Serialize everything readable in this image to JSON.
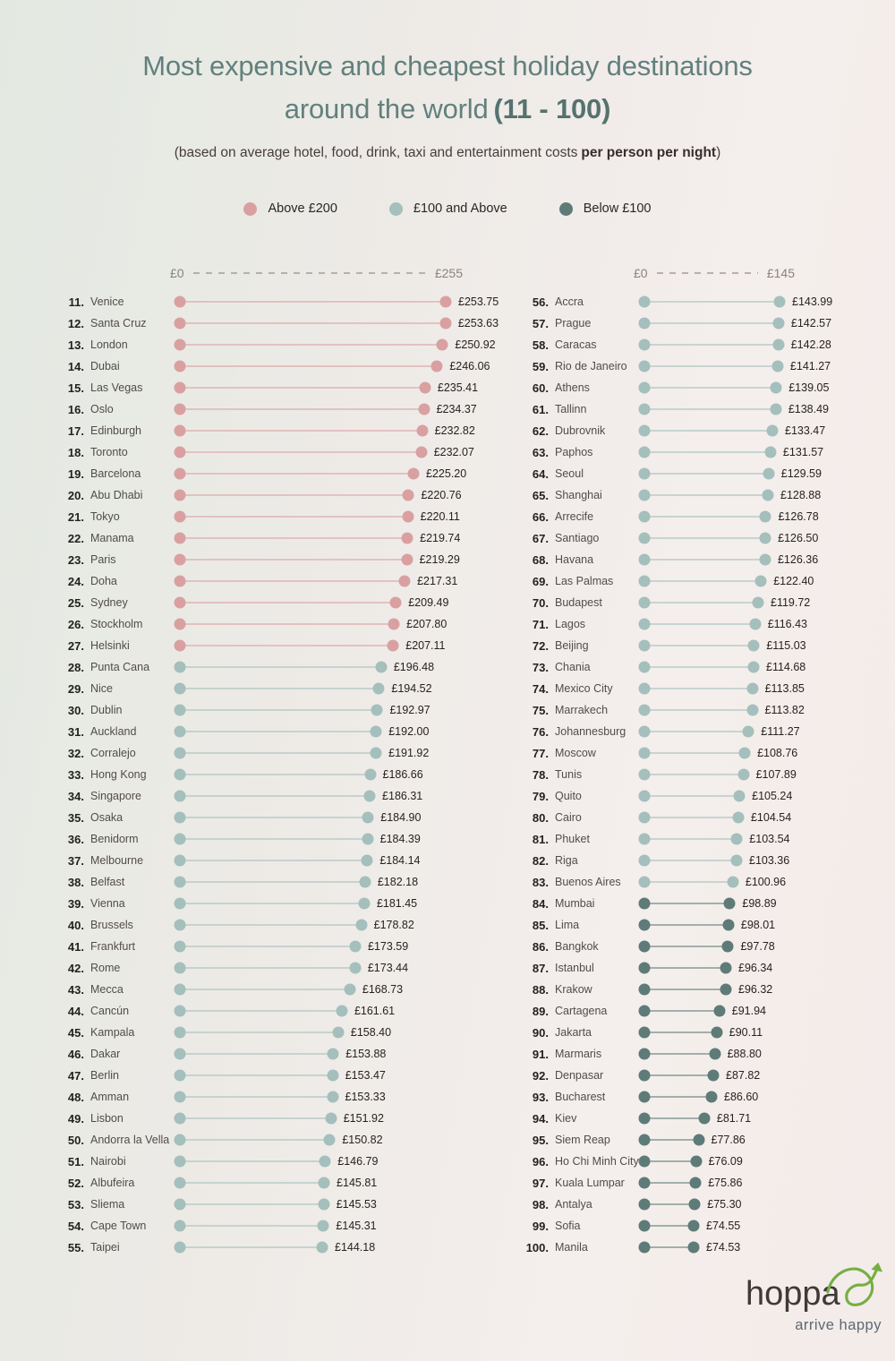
{
  "header": {
    "title_line1": "Most expensive and cheapest holiday destinations",
    "title_line2": "around the world",
    "title_range": "(11 - 100)",
    "subtitle_regular": "(based on average hotel, food, drink, taxi and entertainment costs",
    "subtitle_bold": "per person per night",
    "subtitle_close": ")"
  },
  "legend": {
    "items": [
      {
        "label": "Above £200",
        "color": "#d9a0a2"
      },
      {
        "label": "£100 and Above",
        "color": "#a4bfbc"
      },
      {
        "label": "Below £100",
        "color": "#5e7b78"
      }
    ]
  },
  "footer": {
    "brand": "hoppa",
    "tagline": "arrive happy",
    "arrow_color": "#76ae44"
  },
  "chart_data": {
    "type": "bar",
    "variant": "horizontal-dumbbell",
    "title": "Most expensive and cheapest holiday destinations around the world (11 - 100)",
    "unit": "£ per person per night",
    "legend_position": "top-center",
    "tier_colors": {
      "above200": "#d9a0a2",
      "above100": "#a4bfbc",
      "below100": "#5e7b78"
    },
    "panels": [
      {
        "axis_min_label": "£0",
        "axis_max_label": "£255",
        "xlim": [
          0,
          255
        ],
        "items": [
          {
            "rank": 11,
            "name": "Venice",
            "value": 253.75,
            "label": "£253.75",
            "tier": "above200"
          },
          {
            "rank": 12,
            "name": "Santa Cruz",
            "value": 253.63,
            "label": "£253.63",
            "tier": "above200"
          },
          {
            "rank": 13,
            "name": "London",
            "value": 250.92,
            "label": "£250.92",
            "tier": "above200"
          },
          {
            "rank": 14,
            "name": "Dubai",
            "value": 246.06,
            "label": "£246.06",
            "tier": "above200"
          },
          {
            "rank": 15,
            "name": "Las Vegas",
            "value": 235.41,
            "label": "£235.41",
            "tier": "above200"
          },
          {
            "rank": 16,
            "name": "Oslo",
            "value": 234.37,
            "label": "£234.37",
            "tier": "above200"
          },
          {
            "rank": 17,
            "name": "Edinburgh",
            "value": 232.82,
            "label": "£232.82",
            "tier": "above200"
          },
          {
            "rank": 18,
            "name": "Toronto",
            "value": 232.07,
            "label": "£232.07",
            "tier": "above200"
          },
          {
            "rank": 19,
            "name": "Barcelona",
            "value": 225.2,
            "label": "£225.20",
            "tier": "above200"
          },
          {
            "rank": 20,
            "name": "Abu Dhabi",
            "value": 220.76,
            "label": "£220.76",
            "tier": "above200"
          },
          {
            "rank": 21,
            "name": "Tokyo",
            "value": 220.11,
            "label": "£220.11",
            "tier": "above200"
          },
          {
            "rank": 22,
            "name": "Manama",
            "value": 219.74,
            "label": "£219.74",
            "tier": "above200"
          },
          {
            "rank": 23,
            "name": "Paris",
            "value": 219.29,
            "label": "£219.29",
            "tier": "above200"
          },
          {
            "rank": 24,
            "name": "Doha",
            "value": 217.31,
            "label": "£217.31",
            "tier": "above200"
          },
          {
            "rank": 25,
            "name": "Sydney",
            "value": 209.49,
            "label": "£209.49",
            "tier": "above200"
          },
          {
            "rank": 26,
            "name": "Stockholm",
            "value": 207.8,
            "label": "£207.80",
            "tier": "above200"
          },
          {
            "rank": 27,
            "name": "Helsinki",
            "value": 207.11,
            "label": "£207.11",
            "tier": "above200"
          },
          {
            "rank": 28,
            "name": "Punta Cana",
            "value": 196.48,
            "label": "£196.48",
            "tier": "above100"
          },
          {
            "rank": 29,
            "name": "Nice",
            "value": 194.52,
            "label": "£194.52",
            "tier": "above100"
          },
          {
            "rank": 30,
            "name": "Dublin",
            "value": 192.97,
            "label": "£192.97",
            "tier": "above100"
          },
          {
            "rank": 31,
            "name": "Auckland",
            "value": 192.0,
            "label": "£192.00",
            "tier": "above100"
          },
          {
            "rank": 32,
            "name": "Corralejo",
            "value": 191.92,
            "label": "£191.92",
            "tier": "above100"
          },
          {
            "rank": 33,
            "name": "Hong Kong",
            "value": 186.66,
            "label": "£186.66",
            "tier": "above100"
          },
          {
            "rank": 34,
            "name": "Singapore",
            "value": 186.31,
            "label": "£186.31",
            "tier": "above100"
          },
          {
            "rank": 35,
            "name": "Osaka",
            "value": 184.9,
            "label": "£184.90",
            "tier": "above100"
          },
          {
            "rank": 36,
            "name": "Benidorm",
            "value": 184.39,
            "label": "£184.39",
            "tier": "above100"
          },
          {
            "rank": 37,
            "name": "Melbourne",
            "value": 184.14,
            "label": "£184.14",
            "tier": "above100"
          },
          {
            "rank": 38,
            "name": "Belfast",
            "value": 182.18,
            "label": "£182.18",
            "tier": "above100"
          },
          {
            "rank": 39,
            "name": "Vienna",
            "value": 181.45,
            "label": "£181.45",
            "tier": "above100"
          },
          {
            "rank": 40,
            "name": "Brussels",
            "value": 178.82,
            "label": "£178.82",
            "tier": "above100"
          },
          {
            "rank": 41,
            "name": "Frankfurt",
            "value": 173.59,
            "label": "£173.59",
            "tier": "above100"
          },
          {
            "rank": 42,
            "name": "Rome",
            "value": 173.44,
            "label": "£173.44",
            "tier": "above100"
          },
          {
            "rank": 43,
            "name": "Mecca",
            "value": 168.73,
            "label": "£168.73",
            "tier": "above100"
          },
          {
            "rank": 44,
            "name": "Cancún",
            "value": 161.61,
            "label": "£161.61",
            "tier": "above100"
          },
          {
            "rank": 45,
            "name": "Kampala",
            "value": 158.4,
            "label": "£158.40",
            "tier": "above100"
          },
          {
            "rank": 46,
            "name": "Dakar",
            "value": 153.88,
            "label": "£153.88",
            "tier": "above100"
          },
          {
            "rank": 47,
            "name": "Berlin",
            "value": 153.47,
            "label": "£153.47",
            "tier": "above100"
          },
          {
            "rank": 48,
            "name": "Amman",
            "value": 153.33,
            "label": "£153.33",
            "tier": "above100"
          },
          {
            "rank": 49,
            "name": "Lisbon",
            "value": 151.92,
            "label": "£151.92",
            "tier": "above100"
          },
          {
            "rank": 50,
            "name": "Andorra la Vella",
            "value": 150.82,
            "label": "£150.82",
            "tier": "above100"
          },
          {
            "rank": 51,
            "name": "Nairobi",
            "value": 146.79,
            "label": "£146.79",
            "tier": "above100"
          },
          {
            "rank": 52,
            "name": "Albufeira",
            "value": 145.81,
            "label": "£145.81",
            "tier": "above100"
          },
          {
            "rank": 53,
            "name": "Sliema",
            "value": 145.53,
            "label": "£145.53",
            "tier": "above100"
          },
          {
            "rank": 54,
            "name": "Cape Town",
            "value": 145.31,
            "label": "£145.31",
            "tier": "above100"
          },
          {
            "rank": 55,
            "name": "Taipei",
            "value": 144.18,
            "label": "£144.18",
            "tier": "above100"
          }
        ]
      },
      {
        "axis_min_label": "£0",
        "axis_max_label": "£145",
        "xlim": [
          0,
          145
        ],
        "items": [
          {
            "rank": 56,
            "name": "Accra",
            "value": 143.99,
            "label": "£143.99",
            "tier": "above100"
          },
          {
            "rank": 57,
            "name": "Prague",
            "value": 142.57,
            "label": "£142.57",
            "tier": "above100"
          },
          {
            "rank": 58,
            "name": "Caracas",
            "value": 142.28,
            "label": "£142.28",
            "tier": "above100"
          },
          {
            "rank": 59,
            "name": "Rio de Janeiro",
            "value": 141.27,
            "label": "£141.27",
            "tier": "above100"
          },
          {
            "rank": 60,
            "name": "Athens",
            "value": 139.05,
            "label": "£139.05",
            "tier": "above100"
          },
          {
            "rank": 61,
            "name": "Tallinn",
            "value": 138.49,
            "label": "£138.49",
            "tier": "above100"
          },
          {
            "rank": 62,
            "name": "Dubrovnik",
            "value": 133.47,
            "label": "£133.47",
            "tier": "above100"
          },
          {
            "rank": 63,
            "name": "Paphos",
            "value": 131.57,
            "label": "£131.57",
            "tier": "above100"
          },
          {
            "rank": 64,
            "name": "Seoul",
            "value": 129.59,
            "label": "£129.59",
            "tier": "above100"
          },
          {
            "rank": 65,
            "name": "Shanghai",
            "value": 128.88,
            "label": "£128.88",
            "tier": "above100"
          },
          {
            "rank": 66,
            "name": "Arrecife",
            "value": 126.78,
            "label": "£126.78",
            "tier": "above100"
          },
          {
            "rank": 67,
            "name": "Santiago",
            "value": 126.5,
            "label": "£126.50",
            "tier": "above100"
          },
          {
            "rank": 68,
            "name": "Havana",
            "value": 126.36,
            "label": "£126.36",
            "tier": "above100"
          },
          {
            "rank": 69,
            "name": "Las Palmas",
            "value": 122.4,
            "label": "£122.40",
            "tier": "above100"
          },
          {
            "rank": 70,
            "name": "Budapest",
            "value": 119.72,
            "label": "£119.72",
            "tier": "above100"
          },
          {
            "rank": 71,
            "name": "Lagos",
            "value": 116.43,
            "label": "£116.43",
            "tier": "above100"
          },
          {
            "rank": 72,
            "name": "Beijing",
            "value": 115.03,
            "label": "£115.03",
            "tier": "above100"
          },
          {
            "rank": 73,
            "name": "Chania",
            "value": 114.68,
            "label": "£114.68",
            "tier": "above100"
          },
          {
            "rank": 74,
            "name": "Mexico City",
            "value": 113.85,
            "label": "£113.85",
            "tier": "above100"
          },
          {
            "rank": 75,
            "name": "Marrakech",
            "value": 113.82,
            "label": "£113.82",
            "tier": "above100"
          },
          {
            "rank": 76,
            "name": "Johannesburg",
            "value": 111.27,
            "label": "£111.27",
            "tier": "above100"
          },
          {
            "rank": 77,
            "name": "Moscow",
            "value": 108.76,
            "label": "£108.76",
            "tier": "above100"
          },
          {
            "rank": 78,
            "name": "Tunis",
            "value": 107.89,
            "label": "£107.89",
            "tier": "above100"
          },
          {
            "rank": 79,
            "name": "Quito",
            "value": 105.24,
            "label": "£105.24",
            "tier": "above100"
          },
          {
            "rank": 80,
            "name": "Cairo",
            "value": 104.54,
            "label": "£104.54",
            "tier": "above100"
          },
          {
            "rank": 81,
            "name": "Phuket",
            "value": 103.54,
            "label": "£103.54",
            "tier": "above100"
          },
          {
            "rank": 82,
            "name": "Riga",
            "value": 103.36,
            "label": "£103.36",
            "tier": "above100"
          },
          {
            "rank": 83,
            "name": "Buenos Aires",
            "value": 100.96,
            "label": "£100.96",
            "tier": "above100"
          },
          {
            "rank": 84,
            "name": "Mumbai",
            "value": 98.89,
            "label": "£98.89",
            "tier": "below100"
          },
          {
            "rank": 85,
            "name": "Lima",
            "value": 98.01,
            "label": "£98.01",
            "tier": "below100"
          },
          {
            "rank": 86,
            "name": "Bangkok",
            "value": 97.78,
            "label": "£97.78",
            "tier": "below100"
          },
          {
            "rank": 87,
            "name": "Istanbul",
            "value": 96.34,
            "label": "£96.34",
            "tier": "below100"
          },
          {
            "rank": 88,
            "name": "Krakow",
            "value": 96.32,
            "label": "£96.32",
            "tier": "below100"
          },
          {
            "rank": 89,
            "name": "Cartagena",
            "value": 91.94,
            "label": "£91.94",
            "tier": "below100"
          },
          {
            "rank": 90,
            "name": "Jakarta",
            "value": 90.11,
            "label": "£90.11",
            "tier": "below100"
          },
          {
            "rank": 91,
            "name": "Marmaris",
            "value": 88.8,
            "label": "£88.80",
            "tier": "below100"
          },
          {
            "rank": 92,
            "name": "Denpasar",
            "value": 87.82,
            "label": "£87.82",
            "tier": "below100"
          },
          {
            "rank": 93,
            "name": "Bucharest",
            "value": 86.6,
            "label": "£86.60",
            "tier": "below100"
          },
          {
            "rank": 94,
            "name": "Kiev",
            "value": 81.71,
            "label": "£81.71",
            "tier": "below100"
          },
          {
            "rank": 95,
            "name": "Siem Reap",
            "value": 77.86,
            "label": "£77.86",
            "tier": "below100"
          },
          {
            "rank": 96,
            "name": "Ho Chi Minh City",
            "value": 76.09,
            "label": "£76.09",
            "tier": "below100"
          },
          {
            "rank": 97,
            "name": "Kuala Lumpar",
            "value": 75.86,
            "label": "£75.86",
            "tier": "below100"
          },
          {
            "rank": 98,
            "name": "Antalya",
            "value": 75.3,
            "label": "£75.30",
            "tier": "below100"
          },
          {
            "rank": 99,
            "name": "Sofia",
            "value": 74.55,
            "label": "£74.55",
            "tier": "below100"
          },
          {
            "rank": 100,
            "name": "Manila",
            "value": 74.53,
            "label": "£74.53",
            "tier": "below100"
          }
        ]
      }
    ]
  }
}
